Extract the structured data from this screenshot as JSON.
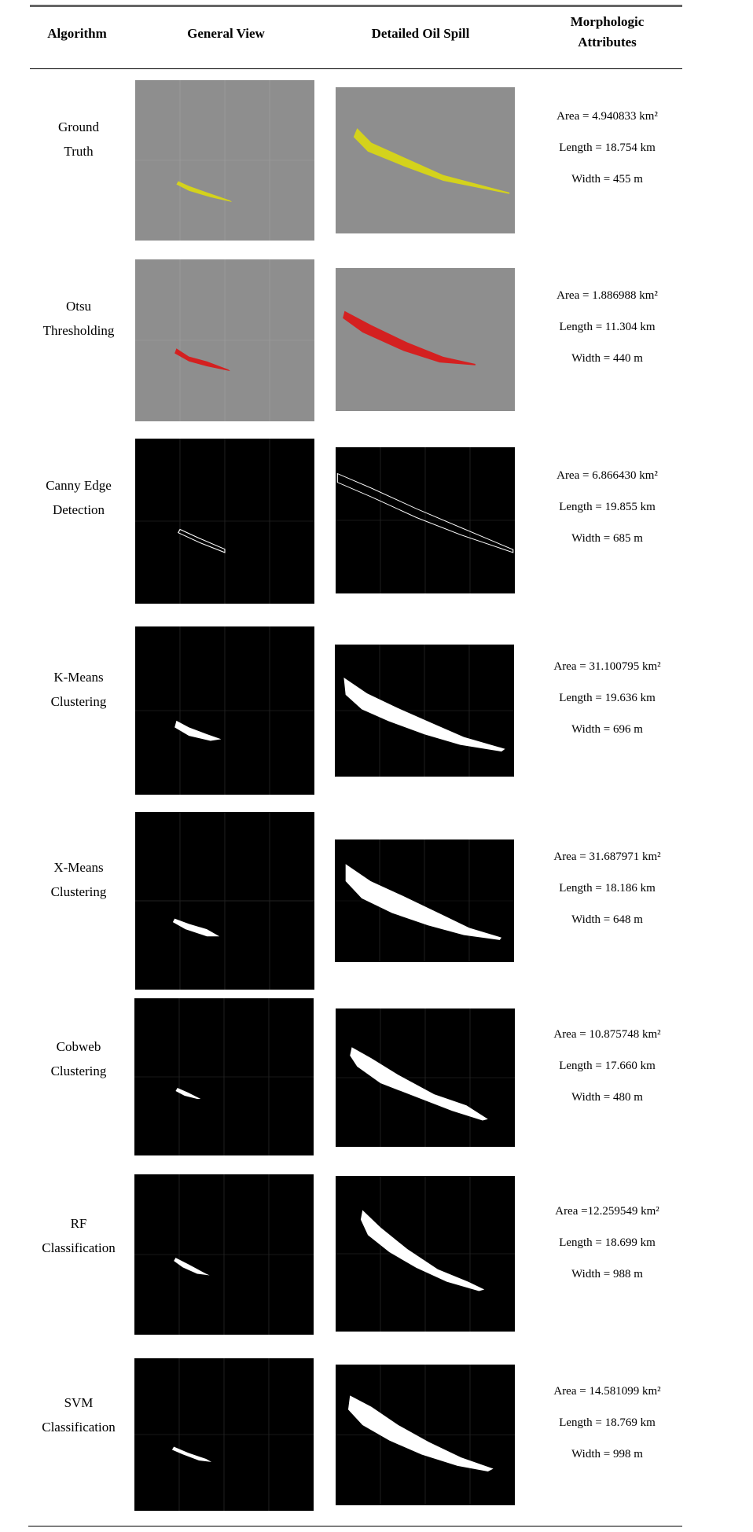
{
  "table": {
    "headers": {
      "algorithm": "Algorithm",
      "general_view": "General View",
      "detailed_view": "Detailed Oil Spill",
      "morph_line1": "Morphologic",
      "morph_line2": "Attributes"
    },
    "rows": [
      {
        "name_line1": "Ground",
        "name_line2": "Truth",
        "area": "Area = 4.940833 km²",
        "length": "Length = 18.754 km",
        "width": "Width = 455 m",
        "overlay": "#d4d21c",
        "bg": "gray"
      },
      {
        "name_line1": "Otsu",
        "name_line2": "Thresholding",
        "area": "Area = 1.886988 km²",
        "length": "Length = 11.304 km",
        "width": "Width = 440 m",
        "overlay": "#d42020",
        "bg": "gray"
      },
      {
        "name_line1": "Canny Edge",
        "name_line2": "Detection",
        "area": "Area =  6.866430 km²",
        "length": "Length = 19.855 km",
        "width": "Width =  685 m",
        "overlay": "#ffffff",
        "bg": "black"
      },
      {
        "name_line1": "K-Means",
        "name_line2": "Clustering",
        "area": "Area = 31.100795 km²",
        "length": "Length = 19.636 km",
        "width": "Width = 696 m",
        "overlay": "#ffffff",
        "bg": "black"
      },
      {
        "name_line1": "X-Means",
        "name_line2": "Clustering",
        "area": "Area = 31.687971 km²",
        "length": "Length = 18.186 km",
        "width": "Width = 648 m",
        "overlay": "#ffffff",
        "bg": "black"
      },
      {
        "name_line1": "Cobweb",
        "name_line2": "Clustering",
        "area": "Area = 10.875748 km²",
        "length": "Length = 17.660 km",
        "width": "Width = 480 m",
        "overlay": "#ffffff",
        "bg": "black"
      },
      {
        "name_line1": "RF",
        "name_line2": "Classification",
        "area": "Area =12.259549 km²",
        "length": "Length = 18.699 km",
        "width": "Width = 988 m",
        "overlay": "#ffffff",
        "bg": "black"
      },
      {
        "name_line1": "SVM",
        "name_line2": "Classification",
        "area": "Area = 14.581099 km²",
        "length": "Length = 18.769 km",
        "width": "Width = 998 m",
        "overlay": "#ffffff",
        "bg": "black"
      }
    ]
  }
}
